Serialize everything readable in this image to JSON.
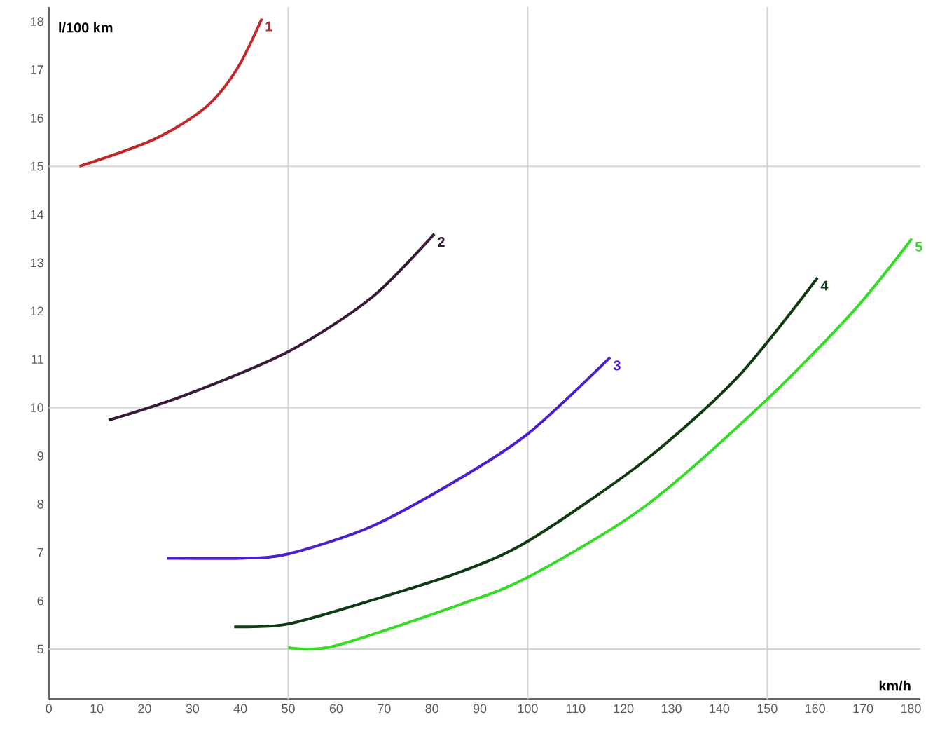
{
  "chart_data": {
    "type": "line",
    "xlabel": "km/h",
    "ylabel": "l/100 km",
    "xlim": [
      0,
      182
    ],
    "ylim": [
      3.96,
      18.3
    ],
    "xticks": [
      0,
      10,
      20,
      30,
      40,
      50,
      60,
      70,
      80,
      90,
      100,
      110,
      120,
      130,
      140,
      150,
      160,
      170,
      180
    ],
    "yticks": [
      5,
      6,
      7,
      8,
      9,
      10,
      11,
      12,
      13,
      14,
      15,
      16,
      17,
      18
    ],
    "grid": false,
    "ref_lines": [
      {
        "axis": "x",
        "value": 50,
        "color": "#d4d4d4"
      },
      {
        "axis": "x",
        "value": 100,
        "color": "#d4d4d4"
      },
      {
        "axis": "x",
        "value": 150,
        "color": "#d4d4d4"
      },
      {
        "axis": "y",
        "value": 5,
        "color": "#d4d4d4"
      },
      {
        "axis": "y",
        "value": 10,
        "color": "#d4d4d4"
      },
      {
        "axis": "y",
        "value": 15,
        "color": "#d4d4d4"
      }
    ],
    "series": [
      {
        "name": "1",
        "color": "#c0282a",
        "x": [
          6.4,
          21.8,
          32.5,
          39.2,
          44.5
        ],
        "values": [
          15.0,
          15.55,
          16.2,
          17.0,
          18.06
        ]
      },
      {
        "name": "2",
        "color": "#3a1a3a",
        "x": [
          12.5,
          28.5,
          50,
          67.4,
          80.5
        ],
        "values": [
          9.74,
          10.26,
          11.16,
          12.28,
          13.6
        ]
      },
      {
        "name": "3",
        "color": "#4b1fd0",
        "x": [
          24.7,
          40.1,
          50,
          67.4,
          85.8,
          100.3,
          117.2
        ],
        "values": [
          6.88,
          6.88,
          6.97,
          7.54,
          8.53,
          9.48,
          11.04
        ]
      },
      {
        "name": "4",
        "color": "#0f3a12",
        "x": [
          38.7,
          50,
          67.4,
          85.8,
          100.3,
          124.4,
          143.9,
          160.5
        ],
        "values": [
          5.46,
          5.52,
          6.01,
          6.59,
          7.25,
          8.9,
          10.64,
          12.69
        ]
      },
      {
        "name": "5",
        "color": "#33dd22",
        "x": [
          50,
          59.6,
          85.8,
          100.3,
          124.4,
          148.8,
          168,
          180.2
        ],
        "values": [
          5.03,
          5.06,
          5.92,
          6.5,
          7.95,
          10.06,
          12.0,
          13.5
        ]
      }
    ]
  }
}
